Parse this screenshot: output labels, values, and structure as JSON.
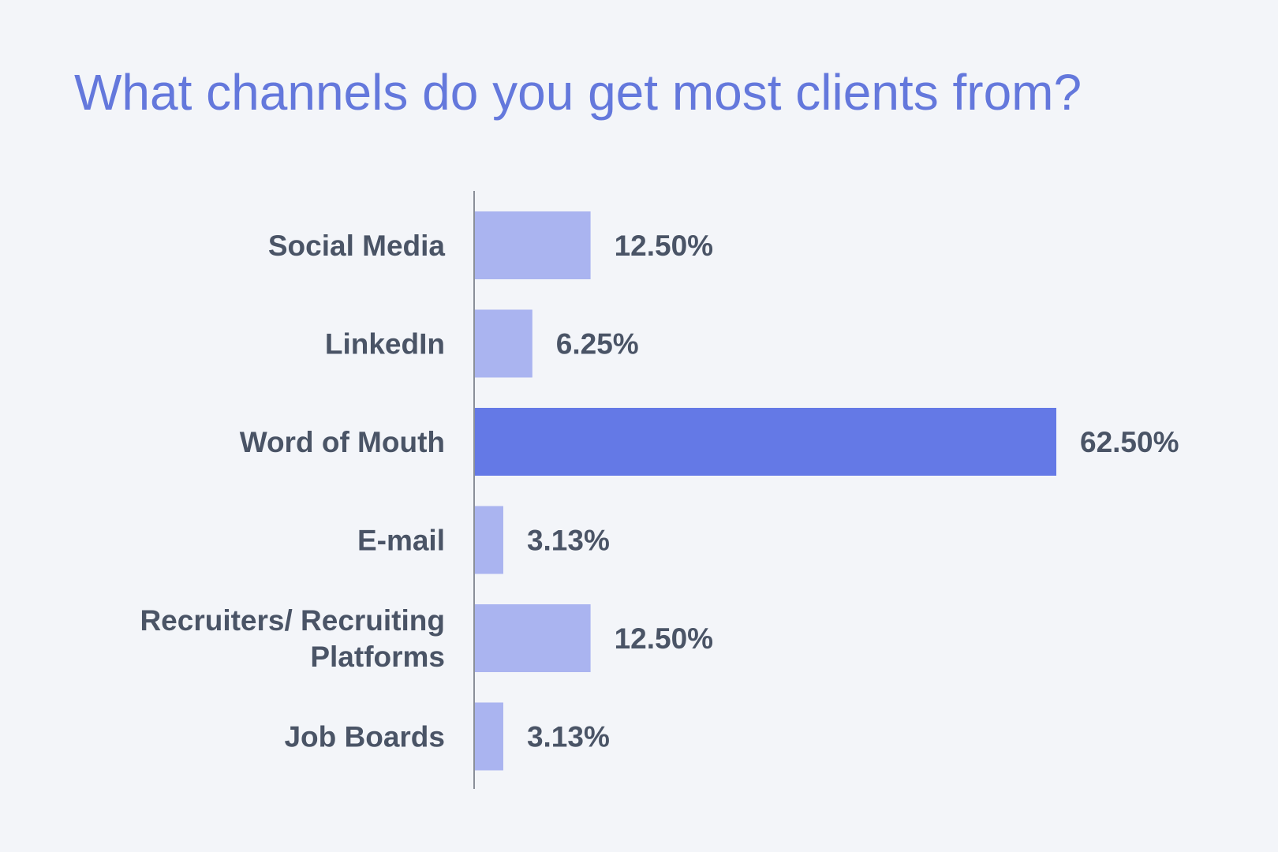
{
  "colors": {
    "background": "#f3f5f9",
    "title": "#6478dc",
    "bar": "#aab4f0",
    "bar_highlight": "#6479e6",
    "text": "#4a5466",
    "axis": "#8a8f99"
  },
  "chart_data": {
    "type": "bar",
    "orientation": "horizontal",
    "title": "What channels do you get most clients from?",
    "xlabel": "",
    "ylabel": "",
    "categories": [
      [
        "Social Media"
      ],
      [
        "LinkedIn"
      ],
      [
        "Word of Mouth"
      ],
      [
        "E-mail"
      ],
      [
        "Recruiters/ Recruiting",
        "Platforms"
      ],
      [
        "Job Boards"
      ]
    ],
    "values": [
      12.5,
      6.25,
      62.5,
      3.13,
      12.5,
      3.13
    ],
    "value_labels": [
      "12.50%",
      "6.25%",
      "62.50%",
      "3.13%",
      "12.50%",
      "3.13%"
    ],
    "highlight_index": 2,
    "xlim": [
      0,
      80
    ],
    "grid": false,
    "legend": "none"
  }
}
